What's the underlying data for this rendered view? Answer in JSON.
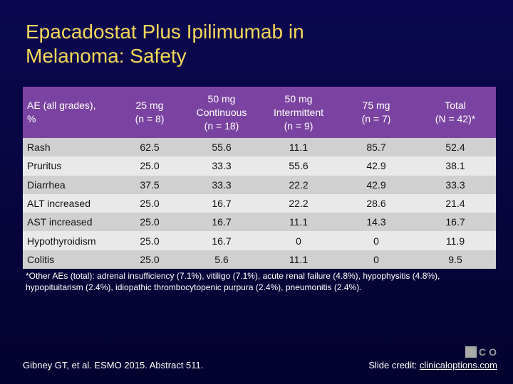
{
  "slide": {
    "title_line1": "Epacadostat Plus Ipilimumab in",
    "title_line2": "Melanoma: Safety"
  },
  "table": {
    "headers": [
      {
        "lines": [
          "AE (all grades),",
          "%"
        ]
      },
      {
        "lines": [
          "25 mg",
          "(n = 8)"
        ]
      },
      {
        "lines": [
          "50 mg",
          "Continuous",
          "(n = 18)"
        ]
      },
      {
        "lines": [
          "50 mg",
          "Intermittent",
          "(n = 9)"
        ]
      },
      {
        "lines": [
          "75 mg",
          "(n = 7)"
        ]
      },
      {
        "lines": [
          "Total",
          "(N = 42)*"
        ]
      }
    ],
    "rows": [
      [
        "Rash",
        "62.5",
        "55.6",
        "11.1",
        "85.7",
        "52.4"
      ],
      [
        "Pruritus",
        "25.0",
        "33.3",
        "55.6",
        "42.9",
        "38.1"
      ],
      [
        "Diarrhea",
        "37.5",
        "33.3",
        "22.2",
        "42.9",
        "33.3"
      ],
      [
        "ALT increased",
        "25.0",
        "16.7",
        "22.2",
        "28.6",
        "21.4"
      ],
      [
        "AST increased",
        "25.0",
        "16.7",
        "11.1",
        "14.3",
        "16.7"
      ],
      [
        "Hypothyroidism",
        "25.0",
        "16.7",
        "0",
        "0",
        "11.9"
      ],
      [
        "Colitis",
        "25.0",
        "5.6",
        "11.1",
        "0",
        "9.5"
      ]
    ]
  },
  "footnote": "*Other AEs (total): adrenal insufficiency (7.1%), vitiligo (7.1%), acute renal failure (4.8%), hypophysitis (4.8%), hypopituitarism (2.4%), idiopathic thrombocytopenic purpura (2.4%), pneumonitis (2.4%).",
  "citation": "Gibney GT, et al. ESMO 2015. Abstract 511.",
  "credit": {
    "prefix": "Slide credit: ",
    "link": "clinicaloptions.com"
  },
  "logo": {
    "letters": [
      "C",
      "O"
    ],
    "color": "#a9a9a9"
  },
  "colors": {
    "background": "#06043a",
    "title": "#f5d75a",
    "header_bg": "#7b43a1",
    "row_odd": "#d0d0d0",
    "row_even": "#e9e9e9"
  }
}
